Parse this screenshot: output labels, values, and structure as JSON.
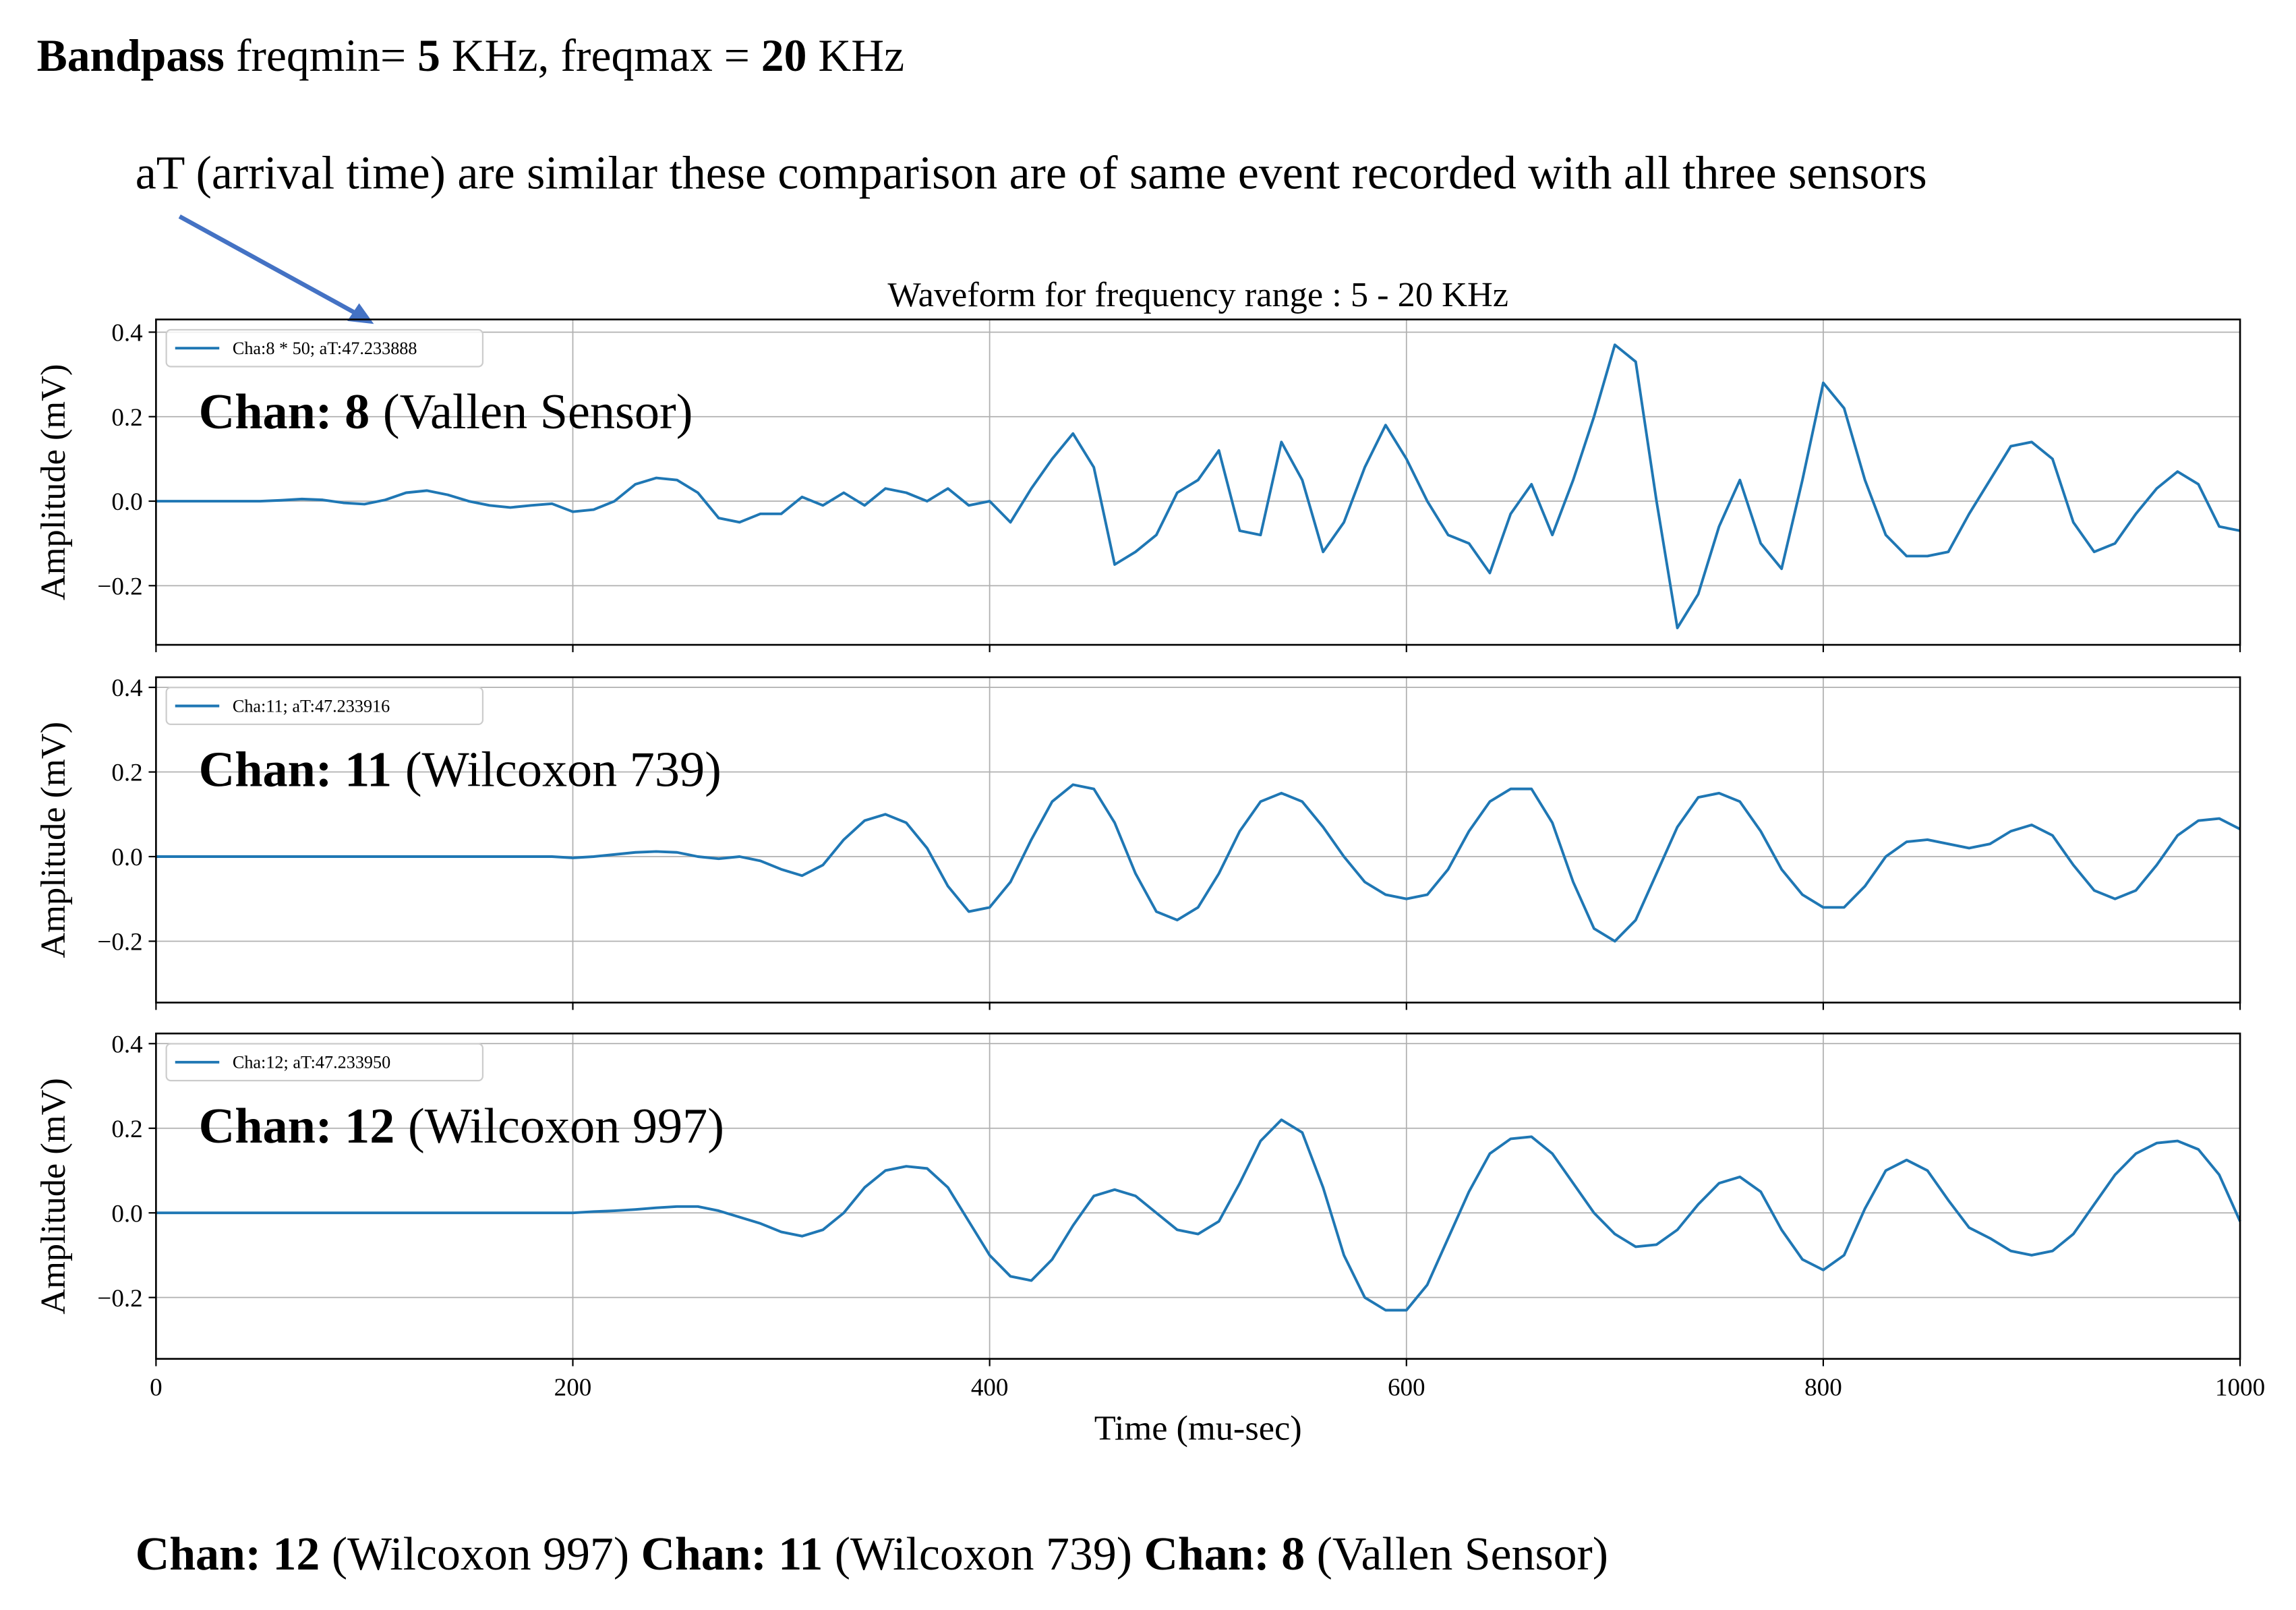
{
  "header": {
    "line1": [
      "Bandpass",
      "freqmin=",
      "5",
      "KHz, freqmax =",
      "20",
      "KHz"
    ],
    "note": "aT (arrival time) are similar these comparison are of same event recorded with all three sensors"
  },
  "chart_data": [
    {
      "type": "line",
      "title": "Waveform for frequency range : 5 - 20 KHz",
      "ylabel": "Amplitude (mV)",
      "x": [
        0,
        10,
        20,
        30,
        40,
        50,
        60,
        70,
        80,
        90,
        100,
        110,
        120,
        130,
        140,
        150,
        160,
        170,
        180,
        190,
        200,
        210,
        220,
        230,
        240,
        250,
        260,
        270,
        280,
        290,
        300,
        310,
        320,
        330,
        340,
        350,
        360,
        370,
        380,
        390,
        400,
        410,
        420,
        430,
        440,
        450,
        460,
        470,
        480,
        490,
        500,
        510,
        520,
        530,
        540,
        550,
        560,
        570,
        580,
        590,
        600,
        610,
        620,
        630,
        640,
        650,
        660,
        670,
        680,
        690,
        700,
        710,
        720,
        730,
        740,
        750,
        760,
        770,
        780,
        790,
        800,
        810,
        820,
        830,
        840,
        850,
        860,
        870,
        880,
        890,
        900,
        910,
        920,
        930,
        940,
        950,
        960,
        970,
        980,
        990,
        1000
      ],
      "xlim": [
        0,
        1000
      ],
      "ylim": [
        -0.34,
        0.43
      ],
      "xticks": [
        0,
        200,
        400,
        600,
        800,
        1000
      ],
      "yticks": [
        {
          "value": -0.2,
          "label": "−0.2"
        },
        {
          "value": 0,
          "label": "0.0"
        },
        0.2,
        0.4
      ],
      "grid": true,
      "show_xtick_labels": false,
      "legend": "upper left",
      "annotation": {
        "label": "Chan: 8",
        "text": "(Vallen Sensor)"
      },
      "series": [
        {
          "name": "Cha:8 * 50; aT:47.233888",
          "color": "#1f77b4",
          "values": [
            0,
            0,
            0,
            0,
            0,
            0,
            0.002,
            0.005,
            0.003,
            -0.004,
            -0.007,
            0.003,
            0.02,
            0.025,
            0.015,
            0.0,
            -0.01,
            -0.015,
            -0.01,
            -0.006,
            -0.025,
            -0.02,
            0.0,
            0.04,
            0.055,
            0.05,
            0.02,
            -0.04,
            -0.05,
            -0.03,
            -0.03,
            0.01,
            -0.01,
            0.02,
            -0.01,
            0.03,
            0.02,
            0.0,
            0.03,
            -0.01,
            0.0,
            -0.05,
            0.03,
            0.1,
            0.16,
            0.08,
            -0.15,
            -0.12,
            -0.08,
            0.02,
            0.05,
            0.12,
            -0.07,
            -0.08,
            0.14,
            0.05,
            -0.12,
            -0.05,
            0.08,
            0.18,
            0.1,
            0.0,
            -0.08,
            -0.1,
            -0.17,
            -0.03,
            0.04,
            -0.08,
            0.05,
            0.2,
            0.37,
            0.33,
            0.0,
            -0.3,
            -0.22,
            -0.06,
            0.05,
            -0.1,
            -0.16,
            0.05,
            0.28,
            0.22,
            0.05,
            -0.08,
            -0.13,
            -0.13,
            -0.12,
            -0.03,
            0.05,
            0.13,
            0.14,
            0.1,
            -0.05,
            -0.12,
            -0.1,
            -0.03,
            0.03,
            0.07,
            0.04,
            -0.06,
            -0.07
          ]
        }
      ]
    },
    {
      "type": "line",
      "ylabel": "Amplitude (mV)",
      "x": [
        0,
        10,
        20,
        30,
        40,
        50,
        60,
        70,
        80,
        90,
        100,
        110,
        120,
        130,
        140,
        150,
        160,
        170,
        180,
        190,
        200,
        210,
        220,
        230,
        240,
        250,
        260,
        270,
        280,
        290,
        300,
        310,
        320,
        330,
        340,
        350,
        360,
        370,
        380,
        390,
        400,
        410,
        420,
        430,
        440,
        450,
        460,
        470,
        480,
        490,
        500,
        510,
        520,
        530,
        540,
        550,
        560,
        570,
        580,
        590,
        600,
        610,
        620,
        630,
        640,
        650,
        660,
        670,
        680,
        690,
        700,
        710,
        720,
        730,
        740,
        750,
        760,
        770,
        780,
        790,
        800,
        810,
        820,
        830,
        840,
        850,
        860,
        870,
        880,
        890,
        900,
        910,
        920,
        930,
        940,
        950,
        960,
        970,
        980,
        990,
        1000
      ],
      "xlim": [
        0,
        1000
      ],
      "ylim": [
        -0.345,
        0.424
      ],
      "xticks": [
        0,
        200,
        400,
        600,
        800,
        1000
      ],
      "yticks": [
        {
          "value": -0.2,
          "label": "−0.2"
        },
        {
          "value": 0,
          "label": "0.0"
        },
        0.2,
        0.4
      ],
      "grid": true,
      "show_xtick_labels": false,
      "legend": "upper left",
      "annotation": {
        "label": "Chan: 11",
        "text": "(Wilcoxon 739)"
      },
      "series": [
        {
          "name": "Cha:11; aT:47.233916",
          "color": "#1f77b4",
          "values": [
            0,
            0,
            0,
            0,
            0,
            0,
            0,
            0,
            0,
            0,
            0,
            0,
            0,
            0,
            0,
            0,
            0,
            0,
            0,
            0,
            -0.003,
            0,
            0.005,
            0.01,
            0.012,
            0.01,
            0.0,
            -0.005,
            0.0,
            -0.01,
            -0.03,
            -0.045,
            -0.02,
            0.04,
            0.085,
            0.1,
            0.08,
            0.02,
            -0.07,
            -0.13,
            -0.12,
            -0.06,
            0.04,
            0.13,
            0.17,
            0.16,
            0.08,
            -0.04,
            -0.13,
            -0.15,
            -0.12,
            -0.04,
            0.06,
            0.13,
            0.15,
            0.13,
            0.07,
            0.0,
            -0.06,
            -0.09,
            -0.1,
            -0.09,
            -0.03,
            0.06,
            0.13,
            0.16,
            0.16,
            0.08,
            -0.06,
            -0.17,
            -0.2,
            -0.15,
            -0.04,
            0.07,
            0.14,
            0.15,
            0.13,
            0.06,
            -0.03,
            -0.09,
            -0.12,
            -0.12,
            -0.07,
            0.0,
            0.035,
            0.04,
            0.03,
            0.02,
            0.03,
            0.06,
            0.075,
            0.05,
            -0.02,
            -0.08,
            -0.1,
            -0.08,
            -0.02,
            0.05,
            0.085,
            0.09,
            0.065
          ]
        }
      ]
    },
    {
      "type": "line",
      "ylabel": "Amplitude (mV)",
      "xlabel": "Time (mu-sec)",
      "x": [
        0,
        10,
        20,
        30,
        40,
        50,
        60,
        70,
        80,
        90,
        100,
        110,
        120,
        130,
        140,
        150,
        160,
        170,
        180,
        190,
        200,
        210,
        220,
        230,
        240,
        250,
        260,
        270,
        280,
        290,
        300,
        310,
        320,
        330,
        340,
        350,
        360,
        370,
        380,
        390,
        400,
        410,
        420,
        430,
        440,
        450,
        460,
        470,
        480,
        490,
        500,
        510,
        520,
        530,
        540,
        550,
        560,
        570,
        580,
        590,
        600,
        610,
        620,
        630,
        640,
        650,
        660,
        670,
        680,
        690,
        700,
        710,
        720,
        730,
        740,
        750,
        760,
        770,
        780,
        790,
        800,
        810,
        820,
        830,
        840,
        850,
        860,
        870,
        880,
        890,
        900,
        910,
        920,
        930,
        940,
        950,
        960,
        970,
        980,
        990,
        1000
      ],
      "xlim": [
        0,
        1000
      ],
      "ylim": [
        -0.345,
        0.424
      ],
      "xticks": [
        0,
        200,
        400,
        600,
        800,
        1000
      ],
      "yticks": [
        {
          "value": -0.2,
          "label": "−0.2"
        },
        {
          "value": 0,
          "label": "0.0"
        },
        0.2,
        0.4
      ],
      "grid": true,
      "show_xtick_labels": true,
      "legend": "upper left",
      "annotation": {
        "label": "Chan: 12",
        "text": "(Wilcoxon 997)"
      },
      "series": [
        {
          "name": "Cha:12; aT:47.233950",
          "color": "#1f77b4",
          "values": [
            0,
            0,
            0,
            0,
            0,
            0,
            0,
            0,
            0,
            0,
            0,
            0,
            0,
            0,
            0,
            0,
            0,
            0,
            0,
            0,
            0.0,
            0.003,
            0.005,
            0.008,
            0.012,
            0.015,
            0.015,
            0.005,
            -0.01,
            -0.025,
            -0.045,
            -0.055,
            -0.04,
            0.0,
            0.06,
            0.1,
            0.11,
            0.105,
            0.06,
            -0.02,
            -0.1,
            -0.15,
            -0.16,
            -0.11,
            -0.03,
            0.04,
            0.055,
            0.04,
            0.0,
            -0.04,
            -0.05,
            -0.02,
            0.07,
            0.17,
            0.22,
            0.19,
            0.06,
            -0.1,
            -0.2,
            -0.23,
            -0.23,
            -0.17,
            -0.06,
            0.05,
            0.14,
            0.175,
            0.18,
            0.14,
            0.07,
            0.0,
            -0.05,
            -0.08,
            -0.075,
            -0.04,
            0.02,
            0.07,
            0.085,
            0.05,
            -0.04,
            -0.11,
            -0.135,
            -0.1,
            0.01,
            0.1,
            0.125,
            0.1,
            0.03,
            -0.035,
            -0.06,
            -0.09,
            -0.1,
            -0.09,
            -0.05,
            0.02,
            0.09,
            0.14,
            0.165,
            0.17,
            0.15,
            0.09,
            -0.02
          ]
        }
      ]
    }
  ],
  "footer": [
    "Chan: 12",
    "(Wilcoxon 997)",
    "Chan: 11",
    "(Wilcoxon 739)",
    "Chan: 8",
    "(Vallen Sensor)"
  ]
}
